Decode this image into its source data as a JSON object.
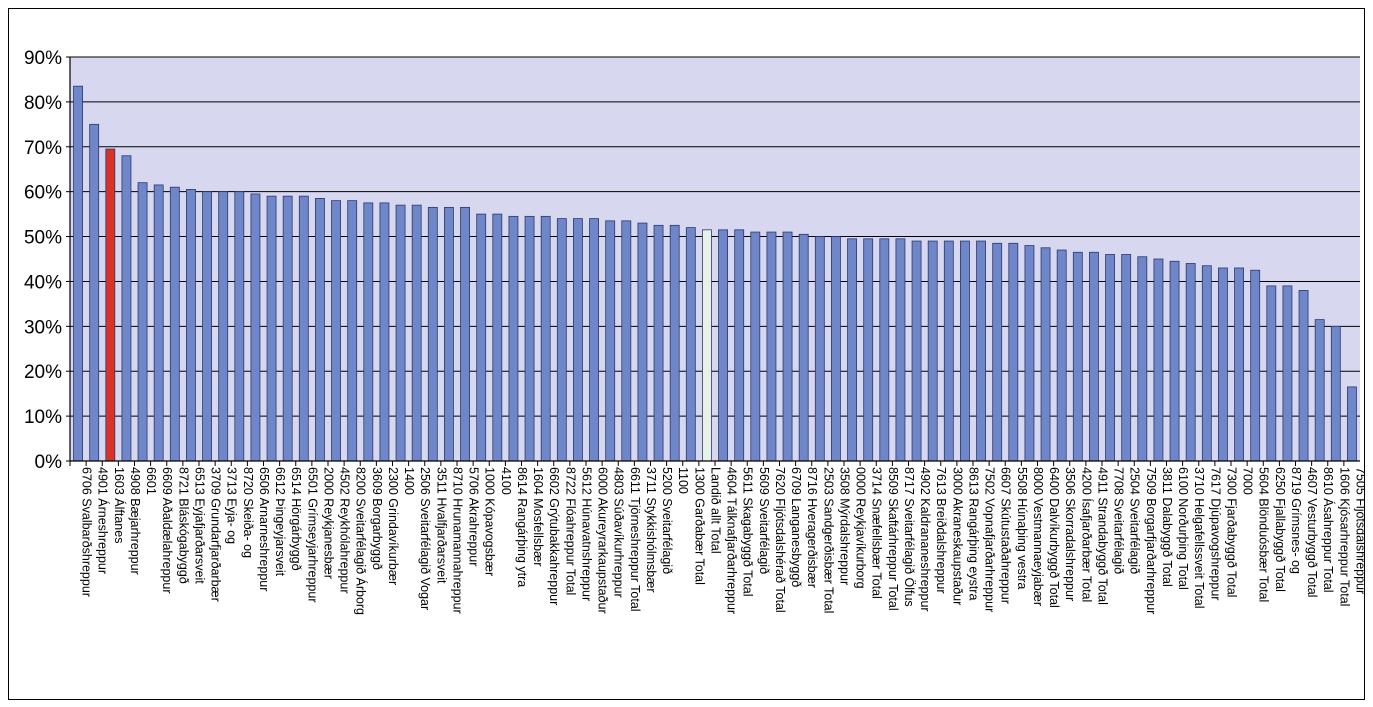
{
  "chart_data": {
    "type": "bar",
    "title": "",
    "xlabel": "",
    "ylabel": "",
    "ylim": [
      0,
      90
    ],
    "yticks": [
      "0%",
      "10%",
      "20%",
      "30%",
      "40%",
      "50%",
      "60%",
      "70%",
      "80%",
      "90%"
    ],
    "grid": true,
    "legend": "none",
    "colors": {
      "plot_bg": "#d7d7f0",
      "bar": "#6f86c9",
      "bar_edge": "#2a3a6e",
      "highlight": "#d93328",
      "highlight_total": "#e6f2e6",
      "grid": "#000000"
    },
    "highlight_categories": {
      "1603 Álftanes": "highlight",
      "Landið allt Total": "highlight_total"
    },
    "categories": [
      "6706 Svalbarðshreppur",
      "4901 Árneshreppur",
      "1603 Álftanes",
      "4908 Bæjarhreppur",
      "6601",
      "6609 Aðaldælahreppur",
      "8721 Bláskógabyggð",
      "6513 Eyjafjarðarsveit",
      "3709 Grundarfjarðarbær",
      "3713 Eyja- og",
      "8720 Skeiða- og",
      "6506 Arnarneshreppur",
      "6612 Þingeyjarsveit",
      "6514 Hörgárbyggð",
      "6501 Grímseyjarhreppur",
      "2000 Reykjanesbær",
      "4502 Reykhólahreppur",
      "8200 Sveitarfélagið Árborg",
      "3609 Borgarbyggð",
      "2300 Grindavíkurbær",
      "1400",
      "2506 Sveitarfélagið Vogar",
      "3511 Hvalfjarðarsveit",
      "8710 Hrunamannahreppur",
      "5706 Akrahreppur",
      "1000 Kópavogsbær",
      "4100",
      "8614 Rangárþing ytra",
      "1604 Mosfellsbær",
      "6602 Grýtubakkahreppur",
      "8722 Flóahreppur Total",
      "5612 Húnavatnshreppur",
      "6000 Akureyrarkaupstaður",
      "4803 Súðavíkurhreppur",
      "6611 Tjörneshreppur Total",
      "3711 Stykkishólmsbær",
      "5200 Sveitarfélagið",
      "1100",
      "1300 Garðabær Total",
      "Landið allt Total",
      "4604 Tálknafjarðarhreppur",
      "5611 Skagabyggð Total",
      "5609 Sveitarfélagið",
      "7620 Fljótsdalshérað Total",
      "6709 Langanesbyggð",
      "8716 Hveragerðisbær",
      "2503 Sandgerðisbær Total",
      "3508 Mýrdalshreppur",
      "0000 Reykjavíkurborg",
      "3714 Snæfellsbær Total",
      "8509 Skaftárhreppur Total",
      "8717 Sveitarfélagið Ölfus",
      "4902 Kaldrananeshreppur",
      "7613 Breiðdalshreppur",
      "3000 Akraneskaupstaður",
      "8613 Rangárþing eystra",
      "7502 Vopnafjarðarhreppur",
      "6607 Skútustaðahreppur",
      "5508 Húnaþing vestra",
      "8000 Vestmannaeyjabær",
      "6400 Dalvíkurbyggð Total",
      "3506 Skorradalshreppur",
      "4200 Ísafjarðarbær Total",
      "4911 Strandabyggð Total",
      "7708 Sveitarfélagið",
      "2504 Sveitarfélagið",
      "7509 Borgarfjarðarhreppur",
      "3811 Dalabyggð Total",
      "6100 Norðurþing Total",
      "3710 Helgafellssveit Total",
      "7617 Djúpavogshreppur",
      "7300 Fjarðabyggð Total",
      "7000",
      "5604 Blönduósbær Total",
      "6250 Fjallabyggð Total",
      "8719 Grímsnes- og",
      "4607 Vesturbyggð Total",
      "8610 Ásahreppur Total",
      "1606 Kjósarhreppur Total",
      "7505 Fljótsdalshreppur"
    ],
    "values": [
      83.5,
      75.0,
      69.5,
      68.0,
      62.0,
      61.5,
      61.0,
      60.5,
      60.0,
      60.0,
      60.0,
      59.5,
      59.0,
      59.0,
      59.0,
      58.5,
      58.0,
      58.0,
      57.5,
      57.5,
      57.0,
      57.0,
      56.5,
      56.5,
      56.5,
      55.0,
      55.0,
      54.5,
      54.5,
      54.5,
      54.0,
      54.0,
      54.0,
      53.5,
      53.5,
      53.0,
      52.5,
      52.5,
      52.0,
      51.5,
      51.5,
      51.5,
      51.0,
      51.0,
      51.0,
      50.5,
      50.0,
      50.0,
      49.5,
      49.5,
      49.5,
      49.5,
      49.0,
      49.0,
      49.0,
      49.0,
      49.0,
      48.5,
      48.5,
      48.0,
      47.5,
      47.0,
      46.5,
      46.5,
      46.0,
      46.0,
      45.5,
      45.0,
      44.5,
      44.0,
      43.5,
      43.0,
      43.0,
      42.5,
      39.0,
      39.0,
      38.0,
      31.5,
      30.0,
      16.5
    ]
  }
}
